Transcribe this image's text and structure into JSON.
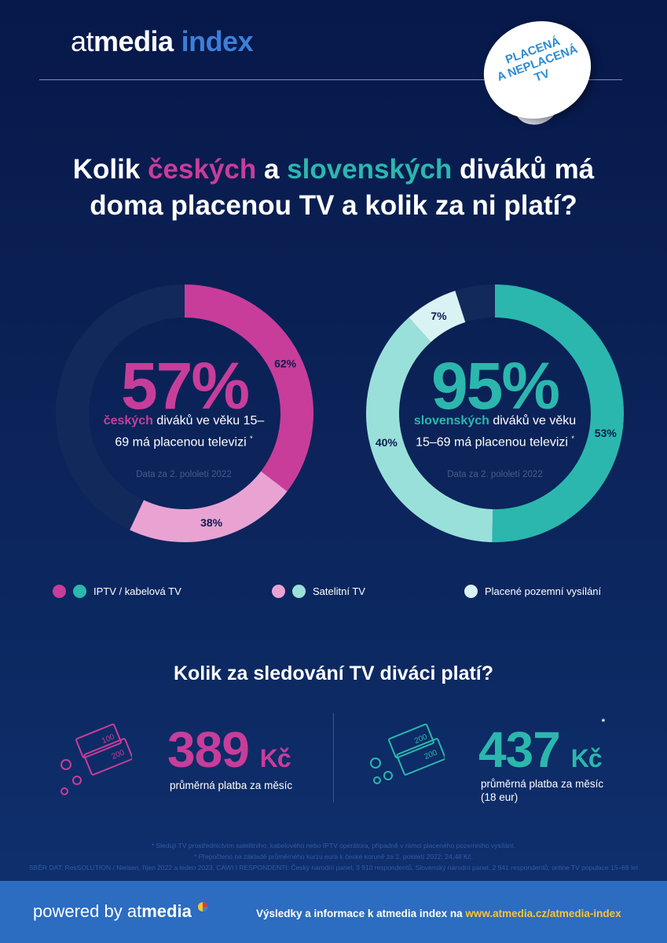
{
  "header": {
    "logo_part1": "at",
    "logo_part2": "media",
    "logo_part3": "index",
    "sticker": [
      "PLACENÁ",
      "A NEPLACENÁ",
      "TV"
    ]
  },
  "title": {
    "line1_a": "Kolik ",
    "line1_b": "českých",
    "line1_c": " a ",
    "line1_d": "slovenských",
    "line1_e": " diváků má",
    "line2": "doma placenou TV a kolik za ni platí?"
  },
  "czech": {
    "big_value": "57%",
    "text_highlight": "českých",
    "text_rest": " diváků ve věku 15–69 má placenou televizi",
    "asterisk": "*",
    "note": "Data za 2. pololetí 2022"
  },
  "slovak": {
    "big_value": "95%",
    "text_highlight": "slovenských",
    "text_rest": " diváků ve věku 15–69 má placenou televizi",
    "asterisk": "*",
    "note": "Data za 2. pololetí 2022"
  },
  "chart_data": [
    {
      "type": "pie",
      "total_share_percent": 57,
      "series": [
        {
          "name": "IPTV / kabelová TV",
          "value": 62,
          "label": "62%"
        },
        {
          "name": "Satelitní TV",
          "value": 38,
          "label": "38%"
        }
      ]
    },
    {
      "type": "pie",
      "total_share_percent": 95,
      "series": [
        {
          "name": "IPTV / kabelová TV",
          "value": 53,
          "label": "53%"
        },
        {
          "name": "Satelitní TV",
          "value": 40,
          "label": "40%"
        },
        {
          "name": "Placené pozemní vysílání",
          "value": 7,
          "label": "7%"
        }
      ]
    }
  ],
  "colors": {
    "cz_cable": "#c83d9a",
    "cz_sat": "#e8a3d3",
    "sk_cable": "#2bb7ad",
    "sk_sat": "#9ae0da",
    "sk_terr": "#d9f2f3",
    "track": "#12295b",
    "label_dark": "#0b1b4d"
  },
  "legend": {
    "cable": "IPTV / kabelová TV",
    "satellite": "Satelitní TV",
    "terrestrial": "Placené pozemní vysílání"
  },
  "payment": {
    "title": "Kolik za sledování TV diváci platí?",
    "cz_amount": "389",
    "cz_currency": "Kč",
    "cz_sub": "průměrná platba za měsíc",
    "sk_amount": "437",
    "sk_currency": "Kč",
    "sk_asterisk": "*",
    "sk_sub": "průměrná platba za měsíc",
    "sk_sub2": "(18 eur)",
    "note_100": "100",
    "note_200": "200"
  },
  "footnotes": {
    "line1": "* Sledují TV prostřednictvím satelitního, kabelového nebo IPTV operátora, případně v rámci placeného pozemního vysílání.",
    "line2": "* Přepočteno na základě průměrného kurzu eura k české koruně za 2. pololetí 2022: 24,48 Kč.",
    "line3": "SBĚR DAT: ResSOLUTION / Nielsen, říjen 2022 a leden 2023, CAWI    I    RESPONDENTI: Český národní panel, 3 910 respondentů, Slovenský národní panel, 2 941 respondentů; online TV populace 15–69 let"
  },
  "footer": {
    "powered_prefix": "powered by ",
    "brand_a": "at",
    "brand_b": "media",
    "text_prefix": "Výsledky a informace k atmedia index na ",
    "url": "www.atmedia.cz/atmedia-index"
  }
}
